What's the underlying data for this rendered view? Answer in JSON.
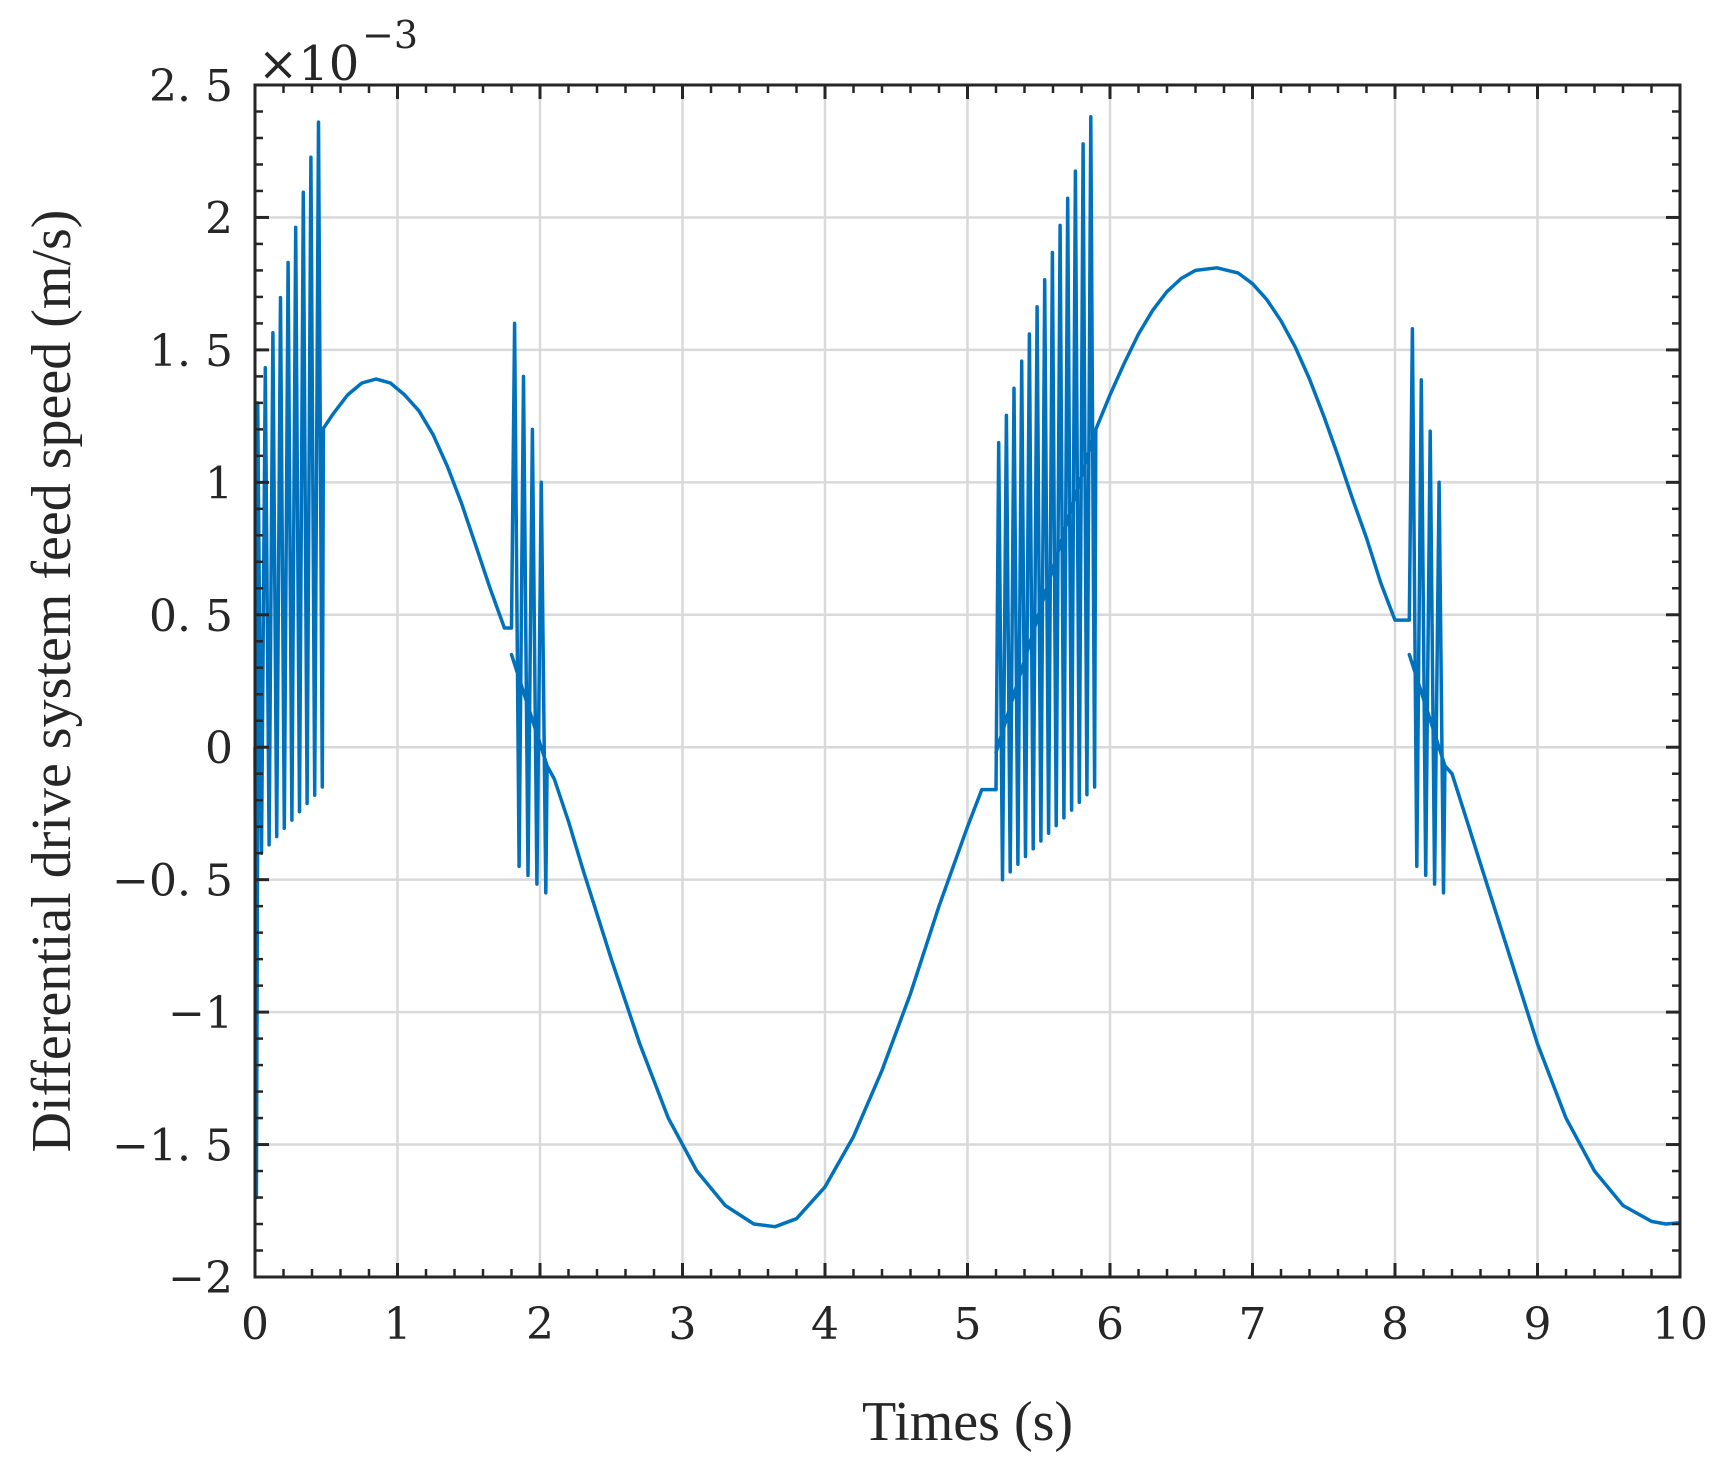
{
  "chart_data": {
    "type": "line",
    "xlabel": "Times (s)",
    "ylabel": "Differential drive system feed speed (m/s)",
    "y_multiplier": {
      "base": "×10",
      "exponent": "−3"
    },
    "xlim": [
      0,
      10
    ],
    "ylim": [
      -2.0,
      2.5
    ],
    "grid": true,
    "x_ticks": [
      0,
      1,
      2,
      3,
      4,
      5,
      6,
      7,
      8,
      9,
      10
    ],
    "x_tick_labels": [
      "0",
      "1",
      "2",
      "3",
      "4",
      "5",
      "6",
      "7",
      "8",
      "9",
      "10"
    ],
    "y_ticks": [
      -2.0,
      -1.5,
      -1.0,
      -0.5,
      0,
      0.5,
      1.0,
      1.5,
      2.0,
      2.5
    ],
    "y_tick_labels": [
      "−2",
      "−1. 5",
      "−1",
      "−0. 5",
      "0",
      "0. 5",
      "1",
      "1. 5",
      "2",
      "2. 5"
    ],
    "colors": {
      "line": "#0072BD",
      "grid": "#d9d9d9",
      "axis": "#262626"
    },
    "series": [
      {
        "smooth_points": [
          [
            0.45,
            1.18
          ],
          [
            0.55,
            1.26
          ],
          [
            0.65,
            1.33
          ],
          [
            0.75,
            1.375
          ],
          [
            0.85,
            1.39
          ],
          [
            0.95,
            1.375
          ],
          [
            1.05,
            1.33
          ],
          [
            1.15,
            1.27
          ],
          [
            1.25,
            1.18
          ],
          [
            1.35,
            1.06
          ],
          [
            1.45,
            0.92
          ],
          [
            1.55,
            0.76
          ],
          [
            1.65,
            0.6
          ],
          [
            1.75,
            0.45
          ],
          [
            1.8,
            0.35
          ],
          [
            2.05,
            -0.07
          ],
          [
            2.1,
            -0.12
          ],
          [
            2.2,
            -0.28
          ],
          [
            2.3,
            -0.46
          ],
          [
            2.5,
            -0.8
          ],
          [
            2.7,
            -1.12
          ],
          [
            2.9,
            -1.4
          ],
          [
            3.1,
            -1.6
          ],
          [
            3.3,
            -1.73
          ],
          [
            3.5,
            -1.8
          ],
          [
            3.65,
            -1.81
          ],
          [
            3.8,
            -1.78
          ],
          [
            4.0,
            -1.66
          ],
          [
            4.2,
            -1.47
          ],
          [
            4.4,
            -1.22
          ],
          [
            4.6,
            -0.93
          ],
          [
            4.8,
            -0.6
          ],
          [
            5.0,
            -0.3
          ],
          [
            5.1,
            -0.16
          ],
          [
            5.2,
            -0.02
          ],
          [
            5.9,
            1.2
          ],
          [
            6.0,
            1.33
          ],
          [
            6.1,
            1.45
          ],
          [
            6.2,
            1.56
          ],
          [
            6.3,
            1.65
          ],
          [
            6.4,
            1.72
          ],
          [
            6.5,
            1.77
          ],
          [
            6.6,
            1.8
          ],
          [
            6.75,
            1.81
          ],
          [
            6.9,
            1.79
          ],
          [
            7.0,
            1.75
          ],
          [
            7.1,
            1.69
          ],
          [
            7.2,
            1.61
          ],
          [
            7.3,
            1.51
          ],
          [
            7.4,
            1.39
          ],
          [
            7.5,
            1.25
          ],
          [
            7.6,
            1.1
          ],
          [
            7.7,
            0.94
          ],
          [
            7.8,
            0.79
          ],
          [
            7.9,
            0.62
          ],
          [
            8.0,
            0.48
          ],
          [
            8.1,
            0.35
          ],
          [
            8.35,
            -0.07
          ],
          [
            8.4,
            -0.1
          ],
          [
            8.5,
            -0.27
          ],
          [
            8.6,
            -0.44
          ],
          [
            8.8,
            -0.78
          ],
          [
            9.0,
            -1.12
          ],
          [
            9.2,
            -1.4
          ],
          [
            9.4,
            -1.6
          ],
          [
            9.6,
            -1.73
          ],
          [
            9.8,
            -1.79
          ],
          [
            9.9,
            -1.8
          ],
          [
            10.0,
            -1.795
          ]
        ],
        "oscillation_bursts": [
          {
            "t_start": 0.0,
            "t_end": 0.48,
            "cycles": 9,
            "peak_start": 1.3,
            "peak_end": 2.36,
            "trough_start": -0.4,
            "trough_end": -0.15,
            "center_end": 1.2
          },
          {
            "t_start": 1.8,
            "t_end": 2.05,
            "cycles": 4,
            "peak_start": 1.6,
            "peak_end": 1.0,
            "trough_start": -0.45,
            "trough_end": -0.55,
            "center_end": -0.07
          },
          {
            "t_start": 5.2,
            "t_end": 5.9,
            "cycles": 13,
            "peak_start": 1.15,
            "peak_end": 2.38,
            "trough_start": -0.5,
            "trough_end": -0.15,
            "center_end": 1.2
          },
          {
            "t_start": 8.1,
            "t_end": 8.35,
            "cycles": 4,
            "peak_start": 1.58,
            "peak_end": 1.0,
            "trough_start": -0.45,
            "trough_end": -0.55,
            "center_end": -0.07
          }
        ],
        "initial_dip": {
          "t": 0.01,
          "y": -1.7
        }
      }
    ]
  }
}
